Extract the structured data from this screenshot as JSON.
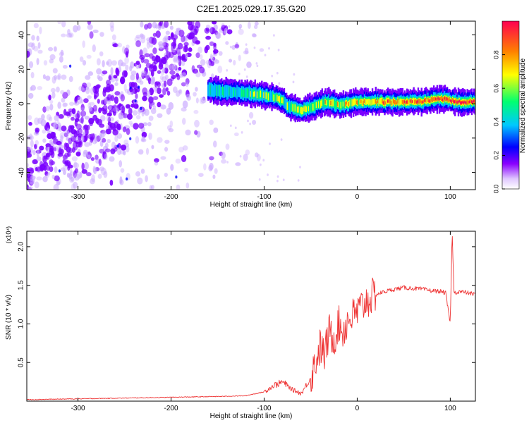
{
  "title": "C2E1.2025.029.17.35.G20",
  "chart_data": [
    {
      "type": "heatmap",
      "title": "C2E1.2025.029.17.35.G20",
      "xlabel": "Height of straight line (km)",
      "ylabel": "Frequency (Hz)",
      "xlim": [
        -355,
        127
      ],
      "ylim": [
        -50,
        48
      ],
      "xticks": [
        -300,
        -200,
        -100,
        0,
        100
      ],
      "xtick_labels": [
        "-300",
        "-200",
        "-100",
        "0",
        "100"
      ],
      "yticks": [
        40,
        20,
        0,
        -20,
        -40
      ],
      "ytick_labels": [
        "40",
        "20",
        "0",
        "-20",
        "-40"
      ],
      "colorbar": {
        "label": "Normalized spectral amplitude",
        "range": [
          0,
          1
        ],
        "ticks": [
          0.0,
          0.2,
          0.4,
          0.6,
          0.8
        ],
        "tick_labels": [
          "0.0",
          "0.2",
          "0.4",
          "0.6",
          "0.8"
        ],
        "colormap": [
          "#ffffff",
          "#c9a8ff",
          "#7a00ff",
          "#0000ff",
          "#00c8ff",
          "#00ff70",
          "#ffff00",
          "#ff8000",
          "#ff0050"
        ]
      },
      "signal_ridge": {
        "x": [
          -160,
          -140,
          -120,
          -100,
          -90,
          -80,
          -75,
          -70,
          -60,
          -50,
          -40,
          -30,
          -20,
          -10,
          0,
          20,
          40,
          60,
          80,
          90,
          100,
          110,
          127
        ],
        "y": [
          8,
          7,
          6,
          5,
          4,
          2,
          -1,
          -2,
          -4,
          -2,
          0,
          1,
          -1,
          0,
          1,
          1,
          1,
          1,
          2,
          3,
          2,
          1,
          1
        ]
      },
      "noise_band": {
        "x_range": [
          -355,
          -130
        ],
        "note_slope": "band drifts upward in frequency with height"
      }
    },
    {
      "type": "line",
      "title": "",
      "xlabel": "Height of straight line (km)",
      "ylabel": "SNR (10 * v/v)",
      "y_multiplier": "(x10⁴)",
      "xlim": [
        -355,
        127
      ],
      "ylim": [
        0,
        2.2
      ],
      "xticks": [
        -300,
        -200,
        -100,
        0,
        100
      ],
      "xtick_labels": [
        "-300",
        "-200",
        "-100",
        "0",
        "100"
      ],
      "yticks": [
        0.5,
        1.0,
        1.5,
        2.0
      ],
      "ytick_labels": [
        "0.5",
        "1.0",
        "1.5",
        "2.0"
      ],
      "series": [
        {
          "color": "#ee3333",
          "x": [
            -355,
            -300,
            -250,
            -200,
            -150,
            -120,
            -100,
            -90,
            -80,
            -70,
            -60,
            -50,
            -45,
            -40,
            -35,
            -30,
            -25,
            -20,
            -15,
            -10,
            -5,
            0,
            10,
            20,
            30,
            40,
            50,
            60,
            70,
            80,
            90,
            95,
            100,
            102,
            104,
            110,
            120,
            127
          ],
          "y": [
            0.02,
            0.03,
            0.04,
            0.05,
            0.06,
            0.07,
            0.12,
            0.2,
            0.25,
            0.15,
            0.1,
            0.3,
            0.5,
            0.7,
            0.6,
            0.9,
            0.8,
            1.0,
            0.9,
            1.05,
            1.1,
            1.15,
            1.3,
            1.38,
            1.42,
            1.45,
            1.47,
            1.46,
            1.45,
            1.43,
            1.42,
            1.4,
            1.0,
            2.2,
            1.4,
            1.42,
            1.4,
            1.38
          ]
        }
      ]
    }
  ]
}
